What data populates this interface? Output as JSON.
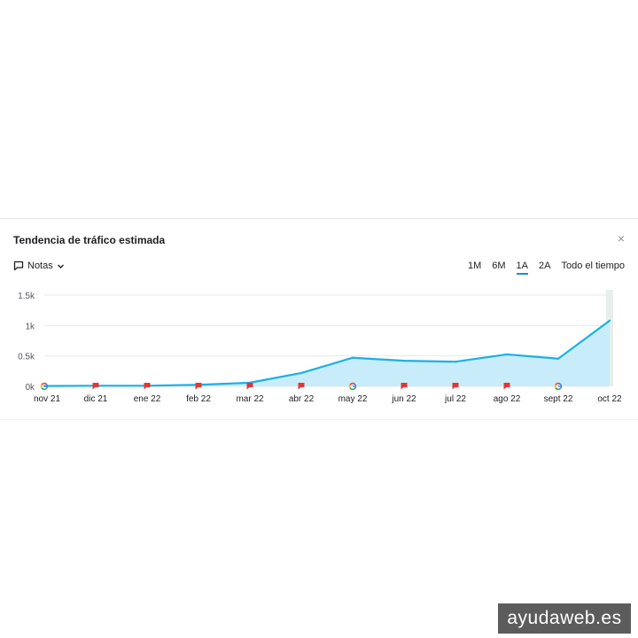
{
  "panel": {
    "title": "Tendencia de tráfico estimada",
    "close_symbol": "×",
    "notes_label": "Notas"
  },
  "range_tabs": [
    {
      "label": "1M",
      "active": false
    },
    {
      "label": "6M",
      "active": false
    },
    {
      "label": "1A",
      "active": true
    },
    {
      "label": "2A",
      "active": false
    },
    {
      "label": "Todo el tiempo",
      "active": false
    }
  ],
  "colors": {
    "line": "#1ab0e8",
    "area": "#c8ecf9",
    "note_flag": "#e8352f",
    "grid": "#e8e9eb"
  },
  "chart_data": {
    "type": "area",
    "title": "",
    "xlabel": "",
    "ylabel": "",
    "x": [
      "nov 21",
      "dic 21",
      "ene 22",
      "feb 22",
      "mar 22",
      "abr 22",
      "may 22",
      "jun 22",
      "jul 22",
      "ago 22",
      "sept 22",
      "oct 22"
    ],
    "ylim": [
      0,
      1500
    ],
    "yticks": [
      {
        "value": 1500,
        "label": "1.5k"
      },
      {
        "value": 1000,
        "label": "1k"
      },
      {
        "value": 500,
        "label": "0.5k"
      },
      {
        "value": 0,
        "label": "0k"
      }
    ],
    "grid": true,
    "legend": "none",
    "series": [
      {
        "values": [
          5,
          10,
          10,
          25,
          60,
          220,
          470,
          420,
          405,
          525,
          455,
          1080
        ]
      }
    ],
    "markers": [
      {
        "x": "nov 21",
        "icon": "google-icon"
      },
      {
        "x": "dic 21",
        "icon": "flag-icon"
      },
      {
        "x": "ene 22",
        "icon": "flag-icon"
      },
      {
        "x": "feb 22",
        "icon": "flag-icon"
      },
      {
        "x": "mar 22",
        "icon": "flag-icon"
      },
      {
        "x": "abr 22",
        "icon": "flag-icon"
      },
      {
        "x": "may 22",
        "icon": "google-icon"
      },
      {
        "x": "jun 22",
        "icon": "flag-icon"
      },
      {
        "x": "jul 22",
        "icon": "flag-icon"
      },
      {
        "x": "ago 22",
        "icon": "flag-icon"
      },
      {
        "x": "sept 22",
        "icon": "google-icon"
      }
    ]
  },
  "watermark": "ayudaweb.es"
}
